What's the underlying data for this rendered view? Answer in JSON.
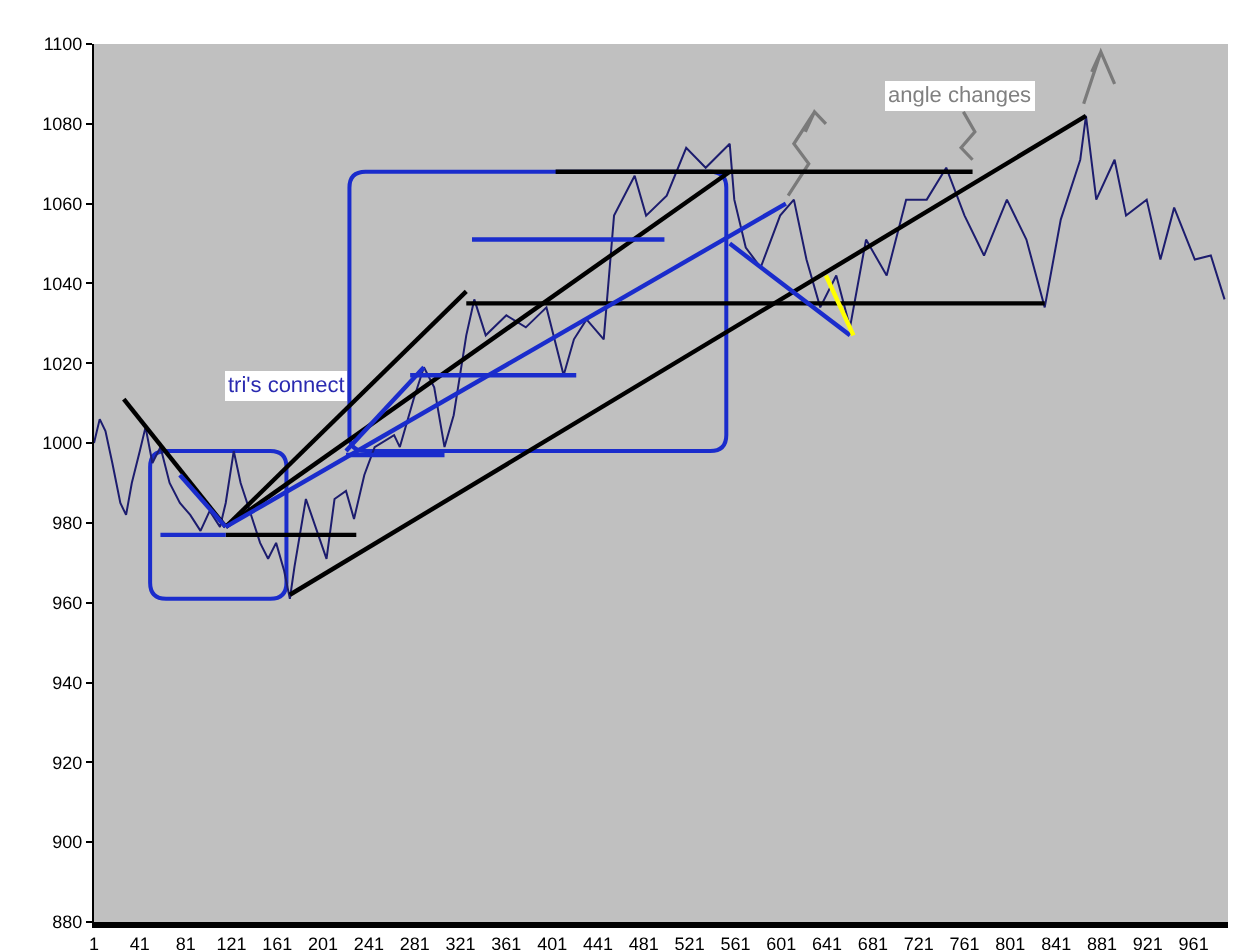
{
  "chart_data": {
    "type": "line",
    "xlim": [
      1,
      991
    ],
    "ylim": [
      880,
      1100
    ],
    "xticks": [
      1,
      41,
      81,
      121,
      161,
      201,
      241,
      281,
      321,
      361,
      401,
      441,
      481,
      521,
      561,
      601,
      641,
      681,
      721,
      761,
      801,
      841,
      881,
      921,
      961
    ],
    "yticks": [
      880,
      900,
      920,
      940,
      960,
      980,
      1000,
      1020,
      1040,
      1060,
      1080,
      1100
    ],
    "grid": false,
    "marker": "none",
    "line_style": "solid",
    "annotations": [
      "tri's connect",
      {
        "text": "angle changes",
        "x": 768,
        "y": 1068
      }
    ],
    "series": [
      {
        "color": "#1c1c6e",
        "x": [
          1,
          6,
          11,
          17,
          24,
          29,
          34,
          41,
          46,
          52,
          59,
          67,
          76,
          85,
          94,
          102,
          111,
          116,
          123,
          129,
          137,
          146,
          153,
          160,
          167,
          172,
          176,
          186,
          204,
          211,
          221,
          228,
          237,
          246,
          263,
          268,
          280,
          289,
          298,
          307,
          315,
          326,
          333,
          343,
          361,
          378,
          396,
          411,
          420,
          431,
          446,
          455,
          473,
          483,
          501,
          518,
          535,
          556,
          560,
          570,
          583,
          600,
          612,
          623,
          635,
          649,
          661,
          675,
          693,
          710,
          728,
          745,
          761,
          778,
          798,
          815,
          831,
          845,
          862,
          867,
          876,
          892,
          902,
          920,
          932,
          944,
          962,
          976,
          988
        ],
        "values": [
          1000,
          1006,
          1003,
          995,
          985,
          982,
          990,
          998,
          1004,
          995,
          999,
          990,
          985,
          982,
          978,
          983,
          979,
          985,
          998,
          990,
          983,
          975,
          971,
          975,
          968,
          961,
          969,
          986,
          971,
          986,
          988,
          981,
          992,
          999,
          1002,
          999,
          1011,
          1019,
          1014,
          999,
          1007,
          1027,
          1036,
          1027,
          1032,
          1029,
          1034,
          1017,
          1026,
          1031,
          1026,
          1057,
          1067,
          1057,
          1062,
          1074,
          1069,
          1075,
          1061,
          1049,
          1044,
          1057,
          1061,
          1046,
          1034,
          1042,
          1029,
          1051,
          1042,
          1061,
          1061,
          1069,
          1057,
          1047,
          1061,
          1051,
          1034,
          1056,
          1071,
          1082,
          1061,
          1071,
          1057,
          1061,
          1046,
          1059,
          1046,
          1047,
          1036
        ]
      },
      {
        "type": "line",
        "color": "#000000",
        "x": [
          172,
          867
        ],
        "values": [
          962,
          1082
        ]
      },
      {
        "type": "line",
        "color": "#000000",
        "x": [
          116,
          230
        ],
        "values": [
          977,
          977
        ]
      },
      {
        "type": "line",
        "color": "#000000",
        "x": [
          404,
          768
        ],
        "values": [
          1068,
          1068
        ]
      },
      {
        "type": "line",
        "color": "#000000",
        "x": [
          326,
          831
        ],
        "values": [
          1035,
          1035
        ]
      },
      {
        "type": "line",
        "color": "#000000",
        "x": [
          27,
          116
        ],
        "values": [
          1011,
          979
        ]
      },
      {
        "type": "line",
        "color": "#000000",
        "x": [
          116,
          556
        ],
        "values": [
          979,
          1068
        ]
      },
      {
        "type": "line",
        "color": "#000000",
        "x": [
          116,
          326
        ],
        "values": [
          979,
          1038
        ]
      },
      {
        "type": "line",
        "color": "#1a2ccc",
        "x": [
          76,
          116
        ],
        "values": [
          992,
          979
        ]
      },
      {
        "type": "line",
        "color": "#1a2ccc",
        "x": [
          59,
          116
        ],
        "values": [
          977,
          977
        ]
      },
      {
        "type": "line",
        "color": "#1a2ccc",
        "x": [
          116,
          605
        ],
        "values": [
          979,
          1060
        ]
      },
      {
        "type": "line",
        "color": "#1a2ccc",
        "x": [
          221,
          289
        ],
        "values": [
          998,
          1019
        ]
      },
      {
        "type": "line",
        "color": "#1a2ccc",
        "x": [
          221,
          307
        ],
        "values": [
          997,
          997
        ]
      },
      {
        "type": "line",
        "color": "#1a2ccc",
        "x": [
          277,
          422
        ],
        "values": [
          1017,
          1017
        ]
      },
      {
        "type": "line",
        "color": "#1a2ccc",
        "x": [
          331,
          499
        ],
        "values": [
          1051,
          1051
        ]
      },
      {
        "type": "line",
        "color": "#1a2ccc",
        "x": [
          556,
          661
        ],
        "values": [
          1050,
          1027
        ]
      },
      {
        "type": "line",
        "color": "#ffff00",
        "x": [
          640,
          664
        ],
        "values": [
          1042,
          1027
        ]
      }
    ]
  }
}
